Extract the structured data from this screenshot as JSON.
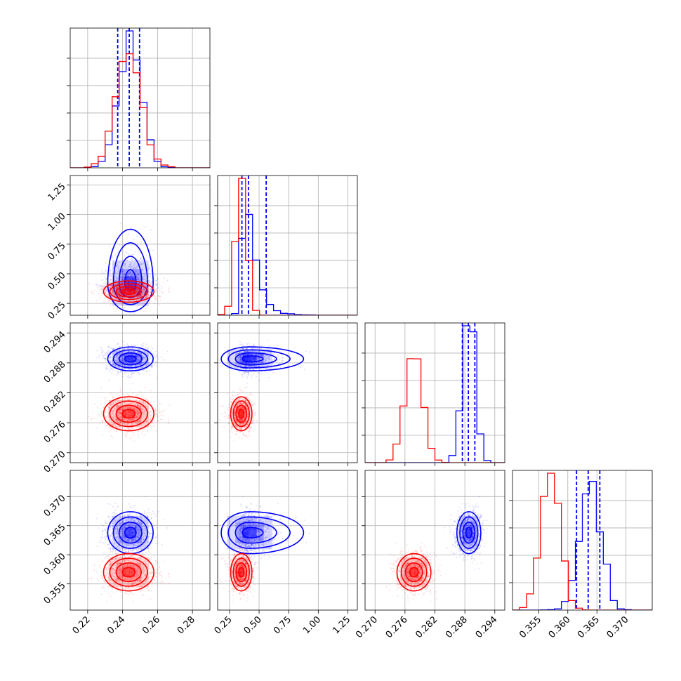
{
  "colors": {
    "series_a": "#0000ff",
    "series_b": "#ff0000",
    "grid": "#b0b0b0",
    "axis": "#000000"
  },
  "chart_data": {
    "type": "corner",
    "grid": true,
    "parameters": [
      {
        "range": [
          0.21,
          0.29
        ],
        "ticks": [
          "0.22",
          "0.24",
          "0.26",
          "0.28"
        ]
      },
      {
        "range": [
          0.15,
          1.33
        ],
        "ticks": [
          "0.25",
          "0.50",
          "0.75",
          "1.00",
          "1.25"
        ]
      },
      {
        "range": [
          0.268,
          0.296
        ],
        "ticks": [
          "0.270",
          "0.276",
          "0.282",
          "0.288",
          "0.294"
        ]
      },
      {
        "range": [
          0.3505,
          0.3745
        ],
        "ticks": [
          "0.355",
          "0.360",
          "0.365",
          "0.370"
        ]
      }
    ],
    "series": [
      {
        "color": "#0000ff",
        "mean": [
          0.2445,
          0.42,
          0.2888,
          0.3638
        ],
        "std": [
          0.0065,
          0.12,
          0.0012,
          0.0018
        ],
        "skew": [
          0,
          1,
          0,
          0
        ],
        "quantile_lines": [
          [
            0.2372,
            0.2438,
            0.2497
          ],
          [
            0.355,
            0.41,
            0.56
          ],
          [
            0.2875,
            0.2887,
            0.29
          ],
          [
            0.3615,
            0.3635,
            0.3655
          ]
        ]
      },
      {
        "color": "#ff0000",
        "mean": [
          0.2435,
          0.35,
          0.2778,
          0.357
        ],
        "std": [
          0.0072,
          0.045,
          0.0017,
          0.0016
        ],
        "skew": [
          0,
          0,
          0,
          0
        ],
        "quantile_lines": null
      }
    ]
  }
}
